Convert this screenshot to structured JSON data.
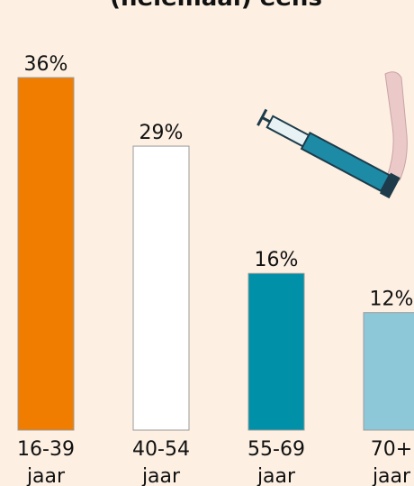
{
  "chart_data": {
    "type": "bar",
    "title": "(helemaal) eens",
    "categories": [
      [
        "16-39",
        "jaar"
      ],
      [
        "40-54",
        "jaar"
      ],
      [
        "55-69",
        "jaar"
      ],
      [
        "70+",
        "jaar"
      ]
    ],
    "values": [
      36,
      29,
      16,
      12
    ],
    "value_labels": [
      "36%",
      "29%",
      "16%",
      "12%"
    ],
    "colors": [
      "#f07d00",
      "#ffffff",
      "#0090a8",
      "#8cc8d8"
    ]
  }
}
